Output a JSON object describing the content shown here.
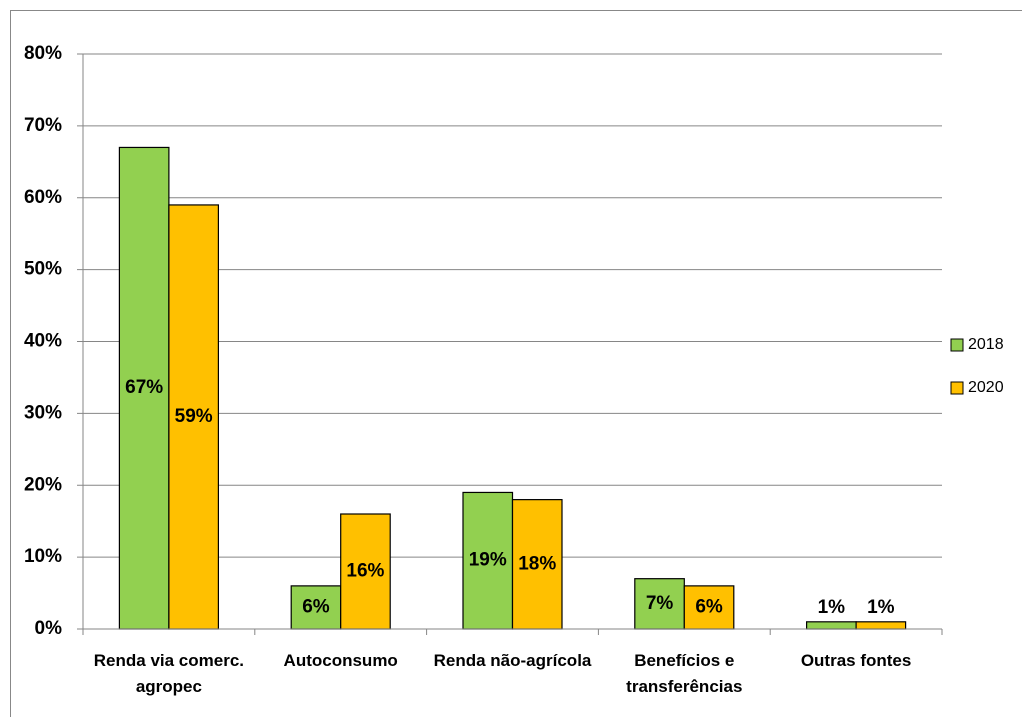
{
  "chart_data": {
    "type": "bar",
    "categories": [
      "Renda via comerc. agropec",
      "Autoconsumo",
      "Renda não-agrícola",
      "Benefícios e transferências",
      "Outras fontes"
    ],
    "series": [
      {
        "name": "2018",
        "color": "#92d050",
        "values": [
          67,
          6,
          19,
          7,
          1
        ],
        "value_labels": [
          "67%",
          "6%",
          "19%",
          "7%",
          "1%"
        ]
      },
      {
        "name": "2020",
        "color": "#ffc000",
        "values": [
          59,
          16,
          18,
          6,
          1
        ],
        "value_labels": [
          "59%",
          "16%",
          "18%",
          "6%",
          "1%"
        ]
      }
    ],
    "ylim": [
      0,
      80
    ],
    "yticks": [
      {
        "value": 0,
        "label": "0%"
      },
      {
        "value": 10,
        "label": "10%"
      },
      {
        "value": 20,
        "label": "20%"
      },
      {
        "value": 30,
        "label": "30%"
      },
      {
        "value": 40,
        "label": "40%"
      },
      {
        "value": 50,
        "label": "50%"
      },
      {
        "value": 60,
        "label": "60%"
      },
      {
        "value": 70,
        "label": "70%"
      },
      {
        "value": 80,
        "label": "80%"
      }
    ],
    "grid": true,
    "legend": "right"
  }
}
